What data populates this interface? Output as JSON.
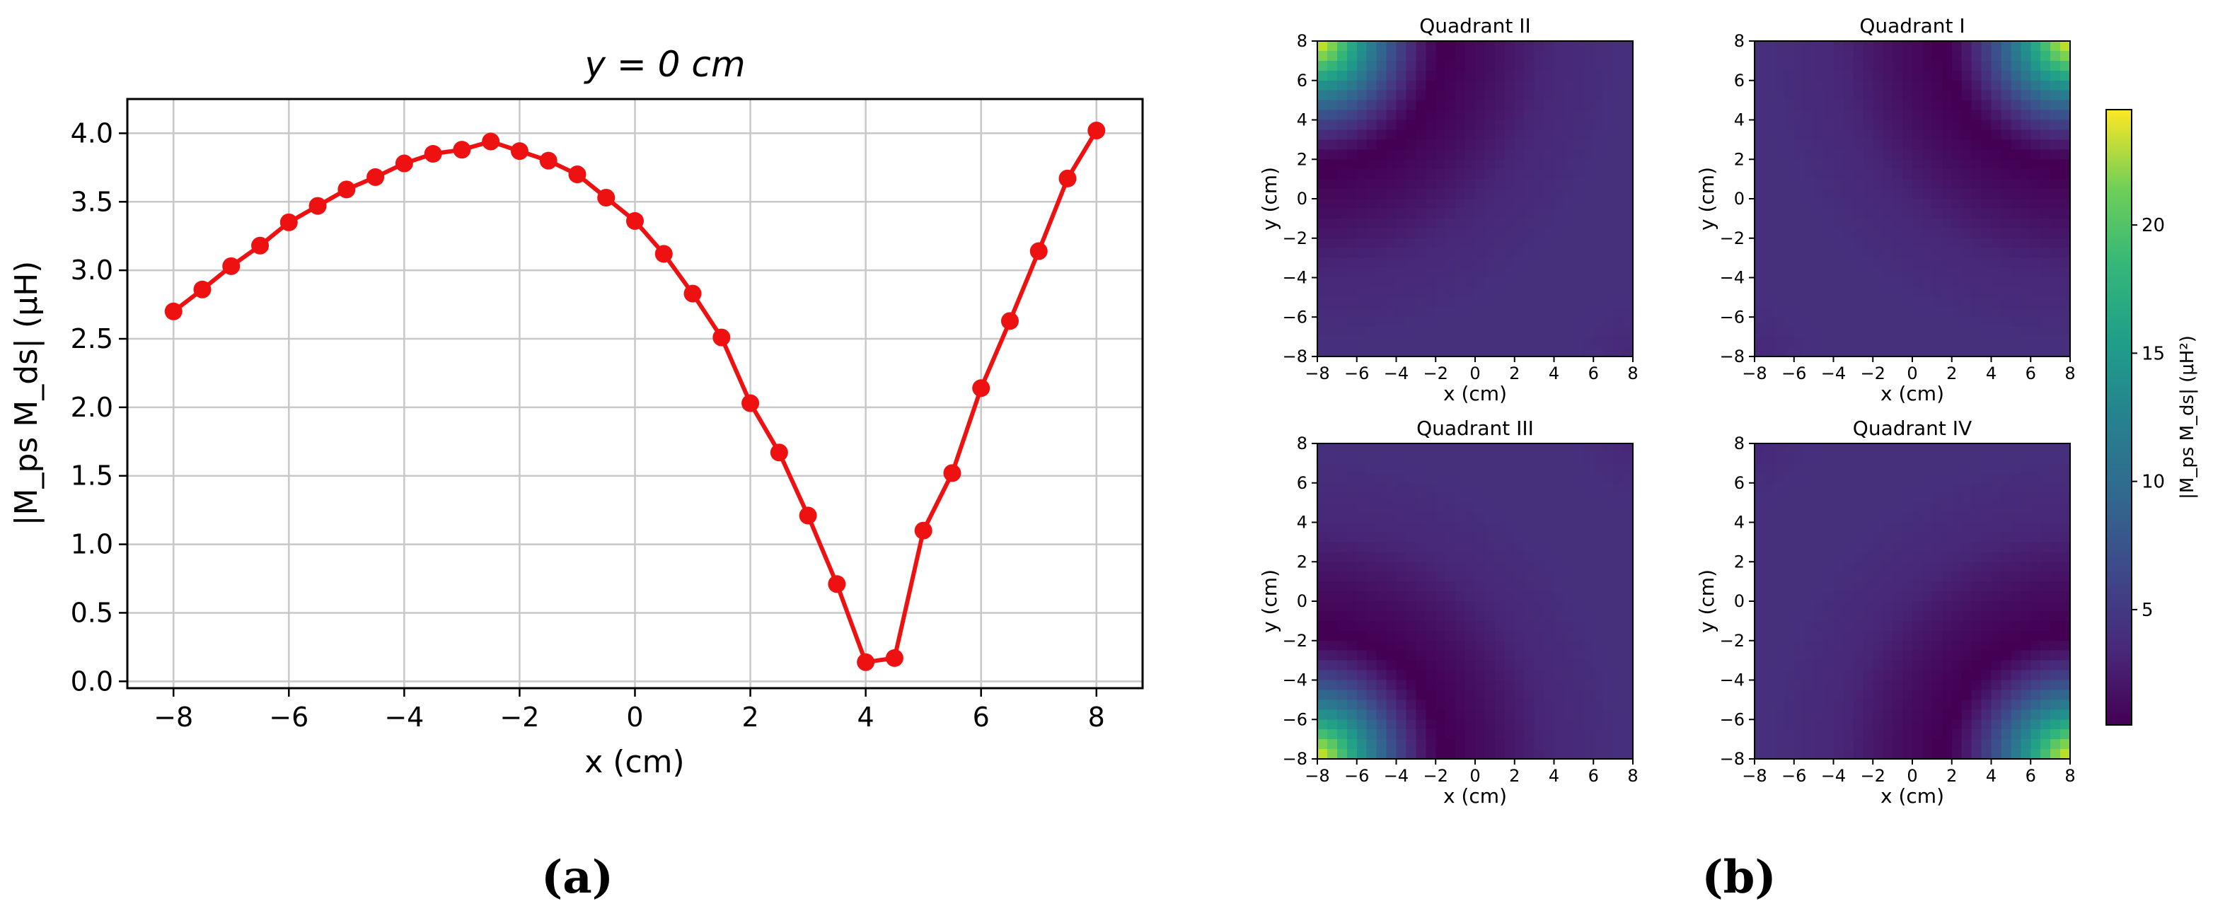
{
  "chart_data": [
    {
      "type": "line",
      "title": "y = 0 cm",
      "xlabel": "x (cm)",
      "ylabel": "|M_ps M_ds| (μH)",
      "xlim": [
        -8.8,
        8.8
      ],
      "ylim": [
        -0.05,
        4.25
      ],
      "xticks": [
        -8,
        -6,
        -4,
        -2,
        0,
        2,
        4,
        6,
        8
      ],
      "yticks": [
        0.0,
        0.5,
        1.0,
        1.5,
        2.0,
        2.5,
        3.0,
        3.5,
        4.0
      ],
      "grid": true,
      "color": "#ee1111",
      "x": [
        -8,
        -7.5,
        -7,
        -6.5,
        -6,
        -5.5,
        -5,
        -4.5,
        -4,
        -3.5,
        -3,
        -2.5,
        -2,
        -1.5,
        -1,
        -0.5,
        0,
        0.5,
        1,
        1.5,
        2,
        2.5,
        3,
        3.5,
        4,
        4.5,
        5,
        5.5,
        6,
        6.5,
        7,
        7.5,
        8
      ],
      "y": [
        2.7,
        2.86,
        3.03,
        3.18,
        3.35,
        3.47,
        3.59,
        3.68,
        3.78,
        3.85,
        3.88,
        3.94,
        3.87,
        3.8,
        3.7,
        3.53,
        3.36,
        3.12,
        2.83,
        2.51,
        2.03,
        1.67,
        1.21,
        0.71,
        0.14,
        0.17,
        1.1,
        1.52,
        2.14,
        2.63,
        3.14,
        3.67,
        4.02
      ]
    },
    {
      "type": "heatmap",
      "xlabel": "x (cm)",
      "ylabel": "y (cm)",
      "xlim": [
        -8,
        8
      ],
      "ylim": [
        -8,
        8
      ],
      "ticks": [
        -8,
        -6,
        -4,
        -2,
        0,
        2,
        4,
        6,
        8
      ],
      "colormap": "viridis",
      "panels": [
        {
          "title": "Quadrant II",
          "corner": "top-left"
        },
        {
          "title": "Quadrant I",
          "corner": "top-right"
        },
        {
          "title": "Quadrant III",
          "corner": "bottom-left"
        },
        {
          "title": "Quadrant IV",
          "corner": "bottom-right"
        }
      ],
      "colorbar": {
        "label": "|M_ps M_ds| (μH²)",
        "range": [
          0.5,
          24.5
        ],
        "ticks": [
          5,
          10,
          15,
          20
        ]
      }
    }
  ],
  "panel_labels": [
    "(a)",
    "(b)"
  ]
}
